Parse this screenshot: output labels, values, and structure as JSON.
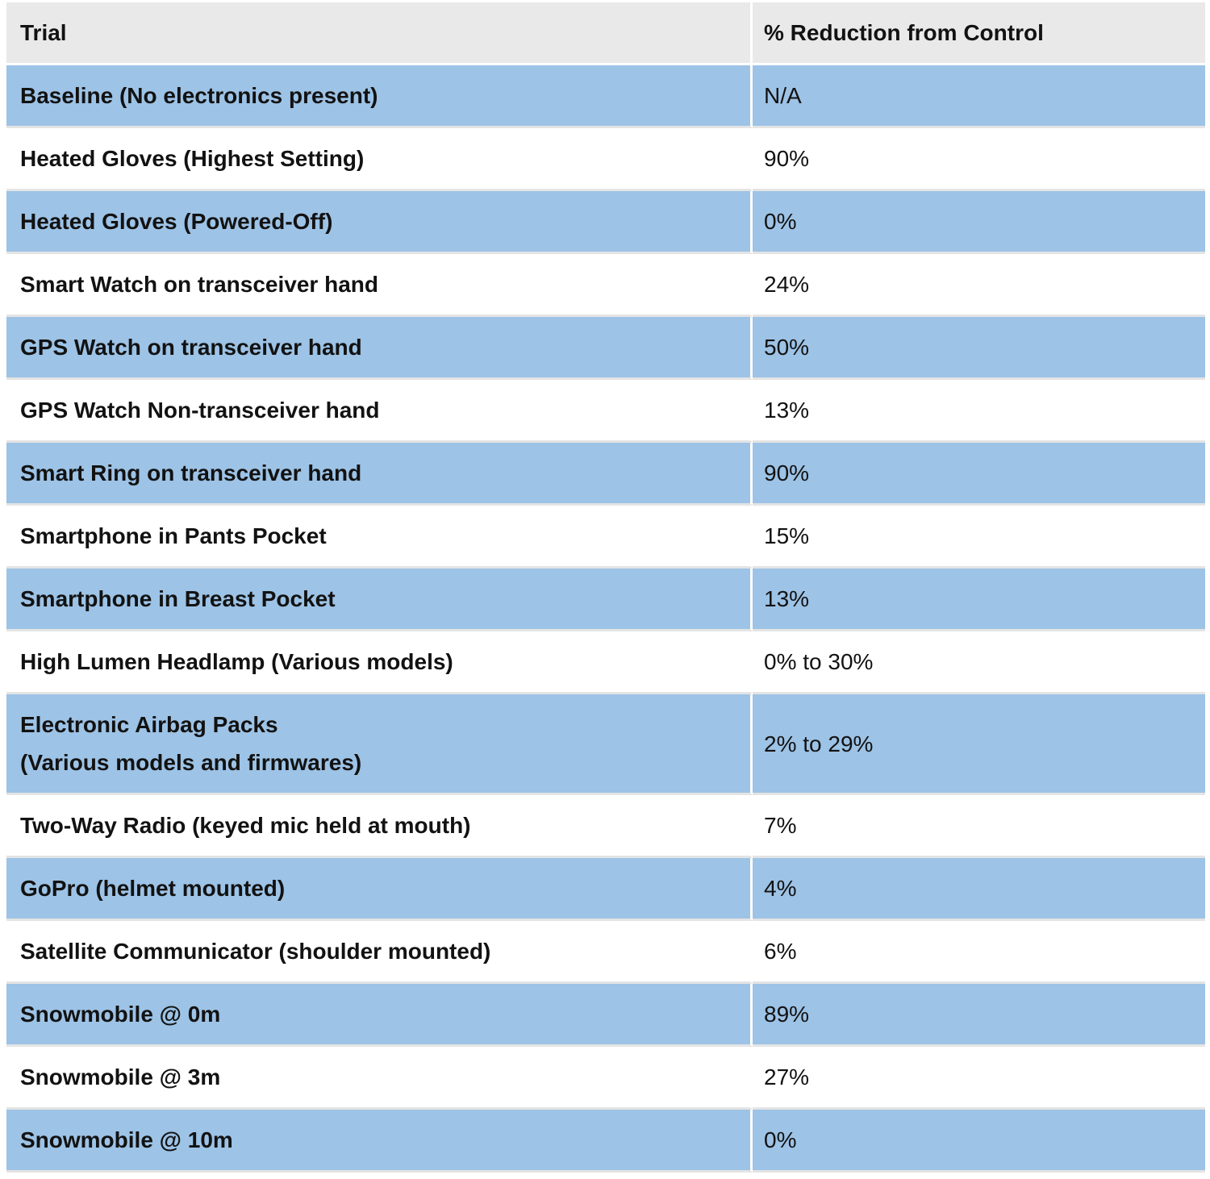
{
  "table": {
    "columns": [
      {
        "label": "Trial"
      },
      {
        "label": "% Reduction from Control"
      }
    ],
    "rows": [
      {
        "trial": "Baseline (No electronics present)",
        "reduction": "N/A",
        "shaded": true,
        "tall": false
      },
      {
        "trial": "Heated Gloves (Highest Setting)",
        "reduction": "90%",
        "shaded": false,
        "tall": false
      },
      {
        "trial": "Heated Gloves (Powered-Off)",
        "reduction": "0%",
        "shaded": true,
        "tall": false
      },
      {
        "trial": "Smart Watch on transceiver hand",
        "reduction": "24%",
        "shaded": false,
        "tall": false
      },
      {
        "trial": "GPS Watch on transceiver hand",
        "reduction": "50%",
        "shaded": true,
        "tall": false
      },
      {
        "trial": "GPS Watch Non-transceiver hand",
        "reduction": "13%",
        "shaded": false,
        "tall": false
      },
      {
        "trial": "Smart Ring on transceiver hand",
        "reduction": "90%",
        "shaded": true,
        "tall": false
      },
      {
        "trial": "Smartphone in Pants Pocket",
        "reduction": "15%",
        "shaded": false,
        "tall": false
      },
      {
        "trial": "Smartphone in Breast Pocket",
        "reduction": "13%",
        "shaded": true,
        "tall": false
      },
      {
        "trial": "High Lumen Headlamp (Various models)",
        "reduction": "0% to 30%",
        "shaded": false,
        "tall": false
      },
      {
        "trial": "Electronic Airbag Packs\n(Various models and firmwares)",
        "reduction": "2% to 29%",
        "shaded": true,
        "tall": true
      },
      {
        "trial": "Two-Way Radio (keyed mic held at mouth)",
        "reduction": "7%",
        "shaded": false,
        "tall": false
      },
      {
        "trial": "GoPro (helmet mounted)",
        "reduction": "4%",
        "shaded": true,
        "tall": false
      },
      {
        "trial": "Satellite Communicator (shoulder mounted)",
        "reduction": "6%",
        "shaded": false,
        "tall": false
      },
      {
        "trial": "Snowmobile @ 0m",
        "reduction": "89%",
        "shaded": true,
        "tall": false
      },
      {
        "trial": "Snowmobile @ 3m",
        "reduction": "27%",
        "shaded": false,
        "tall": false
      },
      {
        "trial": "Snowmobile @ 10m",
        "reduction": "0%",
        "shaded": true,
        "tall": false
      }
    ],
    "colors": {
      "shaded_row": "#9DC3E6",
      "header_bg": "#E9E9E9",
      "row_separator": "#E4E4E4",
      "text": "#121212"
    }
  }
}
